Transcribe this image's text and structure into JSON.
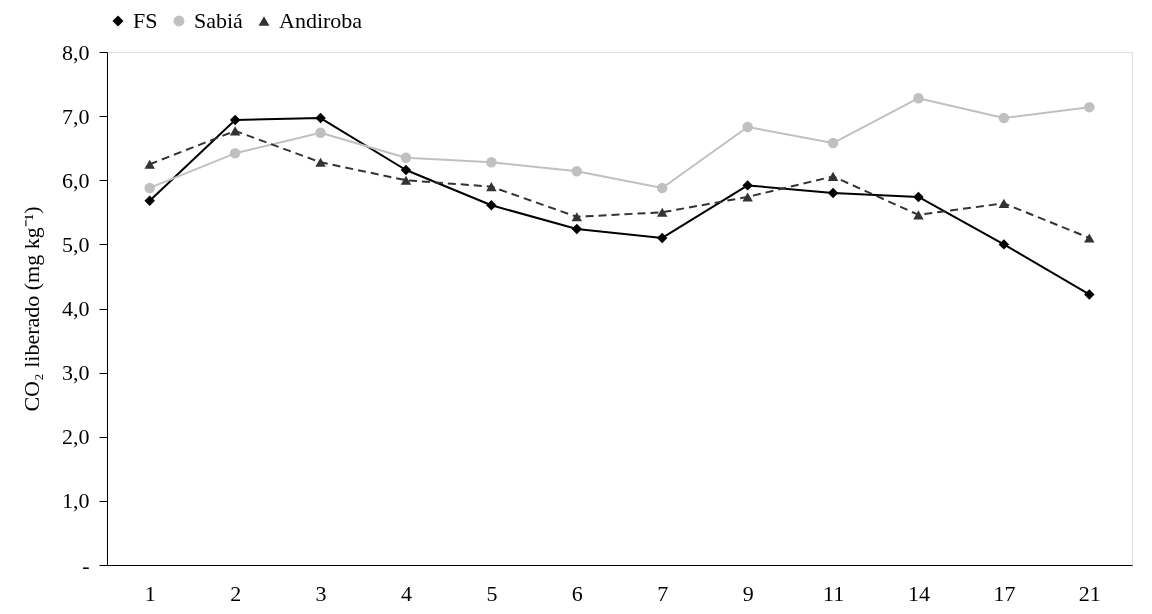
{
  "chart_data": {
    "type": "line",
    "ylabel": "CO₂ liberado (mg kg⁻¹)",
    "categories": [
      "1",
      "2",
      "3",
      "4",
      "5",
      "6",
      "7",
      "9",
      "11",
      "14",
      "17",
      "21"
    ],
    "series": [
      {
        "name": "FS",
        "color": "#000000",
        "marker": "diamond",
        "line_style": "solid",
        "values": [
          5.68,
          6.94,
          6.97,
          6.16,
          5.61,
          5.24,
          5.1,
          5.92,
          5.8,
          5.74,
          5.0,
          4.22
        ]
      },
      {
        "name": "Sabiá",
        "color": "#c0c0c0",
        "marker": "circle",
        "line_style": "solid",
        "values": [
          5.88,
          6.42,
          6.74,
          6.35,
          6.28,
          6.14,
          5.88,
          6.83,
          6.58,
          7.28,
          6.97,
          7.14
        ]
      },
      {
        "name": "Andiroba",
        "color": "#333333",
        "marker": "triangle",
        "line_style": "dashed",
        "values": [
          6.25,
          6.77,
          6.28,
          6.0,
          5.9,
          5.43,
          5.5,
          5.74,
          6.06,
          5.46,
          5.64,
          5.1
        ]
      }
    ],
    "ylim": [
      0,
      8
    ],
    "yticks": [
      {
        "value": 0,
        "label": "-"
      },
      {
        "value": 1,
        "label": "1,0"
      },
      {
        "value": 2,
        "label": "2,0"
      },
      {
        "value": 3,
        "label": "3,0"
      },
      {
        "value": 4,
        "label": "4,0"
      },
      {
        "value": 5,
        "label": "5,0"
      },
      {
        "value": 6,
        "label": "6,0"
      },
      {
        "value": 7,
        "label": "7,0"
      },
      {
        "value": 8,
        "label": "8,0"
      }
    ],
    "grid": false,
    "legend": "top"
  }
}
